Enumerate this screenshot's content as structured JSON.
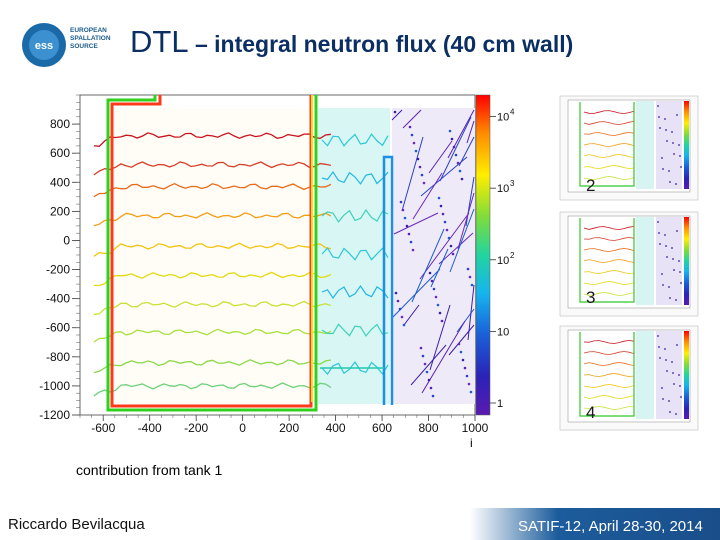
{
  "header": {
    "logo_text": [
      "EUROPEAN",
      "SPALLATION",
      "SOURCE"
    ],
    "logo_mark": "ess",
    "title_main": "DTL",
    "title_sub": " – integral neutron flux (40 cm wall)"
  },
  "chart_data": {
    "type": "heatmap",
    "title": "DTL – integral neutron flux (40 cm wall)",
    "xlabel": "i",
    "ylabel": "",
    "xlim": [
      -700,
      1000
    ],
    "ylim": [
      -1200,
      1000
    ],
    "x_ticks": [
      "-600",
      "-400",
      "-200",
      "0",
      "200",
      "400",
      "600",
      "800",
      "1000"
    ],
    "x_tick_values": [
      -600,
      -400,
      -200,
      0,
      200,
      400,
      600,
      800,
      1000
    ],
    "y_ticks": [
      "800",
      "600",
      "400",
      "200",
      "0",
      "-200",
      "-400",
      "-600",
      "-800",
      "-1000",
      "-1200"
    ],
    "y_tick_values": [
      800,
      600,
      400,
      200,
      0,
      -200,
      -400,
      -600,
      -800,
      -1000,
      -1200
    ],
    "colorbar_scale": "log",
    "colorbar_ticks": [
      "10",
      "10",
      "10",
      "10",
      "1"
    ],
    "colorbar_exponents": [
      "4",
      "3",
      "2",
      "",
      ""
    ],
    "colorbar_tick_values": [
      10000,
      1000,
      100,
      10,
      1
    ],
    "colorbar_colors": [
      "#ff0000",
      "#ff8c00",
      "#ffee00",
      "#7fdc3a",
      "#22d4a0",
      "#16b4ee",
      "#1a5fd8",
      "#2b22b8",
      "#5a1ab0"
    ],
    "contour_levels_y": [
      720,
      520,
      370,
      170,
      -40,
      -240,
      -440,
      -630,
      -840,
      -1000
    ],
    "contour_colors": [
      "#c8141e",
      "#d6402a",
      "#e86a1a",
      "#f29d16",
      "#f2c414",
      "#e3d90f",
      "#c9e03a",
      "#a8e040",
      "#88d84a",
      "#6dd07a"
    ]
  },
  "thumbnails": [
    {
      "label": "2"
    },
    {
      "label": "3"
    },
    {
      "label": "4"
    }
  ],
  "caption": "contribution from tank 1",
  "footer": {
    "author": "Riccardo Bevilacqua",
    "conference": "SATIF-12, April 28-30, 2014"
  }
}
